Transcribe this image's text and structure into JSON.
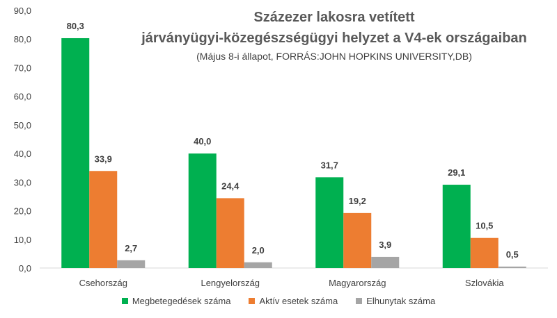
{
  "chart_data": {
    "type": "bar",
    "title_lines": [
      "Százezer lakosra vetített",
      "járványügyi-közegészségügyi helyzet a V4-ek országaiban"
    ],
    "subtitle": "(Május 8-i állapot, FORRÁS:JOHN HOPKINS UNIVERSITY,DB)",
    "categories": [
      "Csehország",
      "Lengyelország",
      "Magyarország",
      "Szlovákia"
    ],
    "series": [
      {
        "name": "Megbetegedések száma",
        "color": "#00B050",
        "values": [
          80.3,
          40.0,
          31.7,
          29.1
        ]
      },
      {
        "name": "Aktív esetek száma",
        "color": "#ED7D31",
        "values": [
          33.9,
          24.4,
          19.2,
          10.5
        ]
      },
      {
        "name": "Elhunytak száma",
        "color": "#A5A5A5",
        "values": [
          2.7,
          2.0,
          3.9,
          0.5
        ]
      }
    ],
    "ylim": [
      0,
      90
    ],
    "yticks": [
      "0,0",
      "10,0",
      "20,0",
      "30,0",
      "40,0",
      "50,0",
      "60,0",
      "70,0",
      "80,0",
      "90,0"
    ],
    "data_labels": [
      [
        "80,3",
        "40,0",
        "31,7",
        "29,1"
      ],
      [
        "33,9",
        "24,4",
        "19,2",
        "10,5"
      ],
      [
        "2,7",
        "2,0",
        "3,9",
        "0,5"
      ]
    ],
    "grid": false,
    "legend_position": "bottom"
  }
}
